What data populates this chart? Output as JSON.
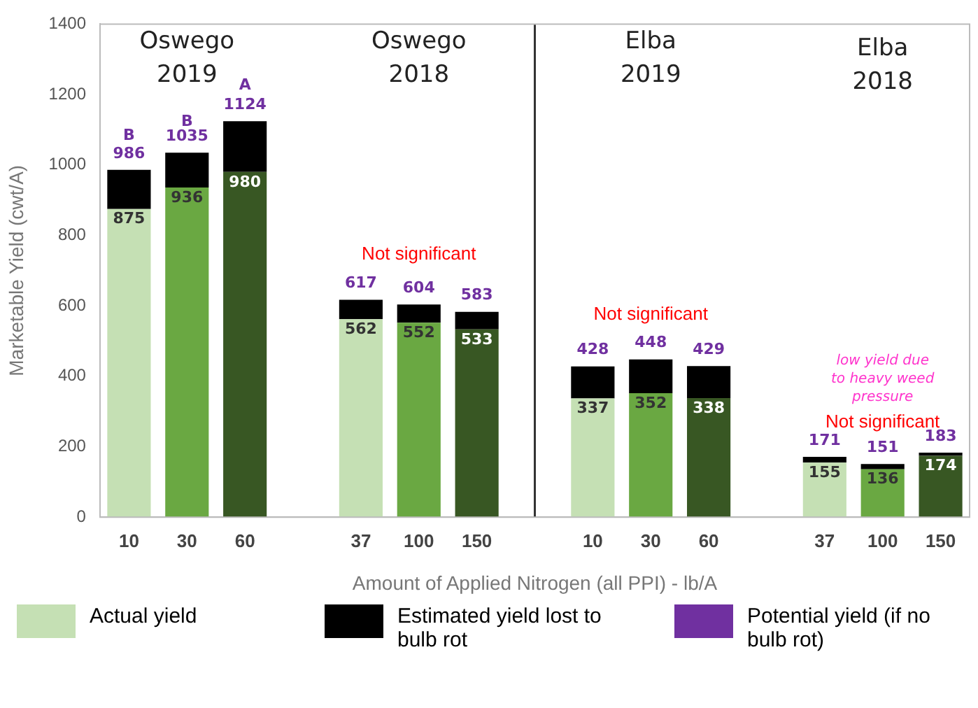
{
  "chart_data": {
    "type": "bar",
    "stacked": true,
    "xlabel": "Amount of Applied Nitrogen (all PPI) - lb/A",
    "ylabel": "Marketable Yield (cwt/A)",
    "categories": [
      "10",
      "30",
      "60",
      null,
      "37",
      "100",
      "150",
      null,
      "10",
      "30",
      "60",
      null,
      "37",
      "100",
      "150"
    ],
    "series": [
      {
        "name": "Actual yield",
        "color": "#c5e0b4",
        "colors": [
          "#c5e0b4",
          "#6aa842",
          "#385723",
          null,
          "#c5e0b4",
          "#6aa842",
          "#385723",
          null,
          "#c5e0b4",
          "#6aa842",
          "#385723",
          null,
          "#c5e0b4",
          "#6aa842",
          "#385723"
        ],
        "values": [
          875,
          936,
          980,
          null,
          562,
          552,
          533,
          null,
          337,
          352,
          338,
          null,
          155,
          136,
          174
        ],
        "value_labels": [
          "875",
          "936",
          "980",
          null,
          "562",
          "552",
          "533",
          null,
          "337",
          "352",
          "338",
          null,
          "155",
          "136",
          "174"
        ]
      },
      {
        "name": "Estimated yield lost to bulb rot",
        "color": "#000000",
        "values": [
          111,
          99,
          144,
          null,
          55,
          52,
          50,
          null,
          91,
          96,
          91,
          null,
          16,
          15,
          9
        ]
      },
      {
        "name": "Potential yield (if no bulb rot)",
        "color": "#7030a0",
        "values": [
          null,
          null,
          null,
          null,
          null,
          null,
          null,
          null,
          null,
          null,
          null,
          null,
          null,
          null,
          null
        ]
      }
    ],
    "totals": [
      "986",
      "1035",
      "1124",
      null,
      "617",
      "604",
      "583",
      null,
      "428",
      "448",
      "429",
      null,
      "171",
      "151",
      "183"
    ],
    "ref_lines": [
      {
        "axis": "x",
        "value": null,
        "color": "#333333"
      }
    ],
    "ylim": [
      0,
      1400
    ],
    "yticks": [
      0,
      200,
      400,
      600,
      800,
      1000,
      1200,
      1400
    ],
    "legend": "bottom",
    "annotations": [
      "Oswego\n2019",
      "Oswego\n2018",
      "Elba\n2019",
      "Elba\n2018",
      "B",
      "B",
      "A",
      "Not significant",
      "Not significant",
      "low yield due\nto heavy weed\npressure",
      "Not significant"
    ]
  }
}
